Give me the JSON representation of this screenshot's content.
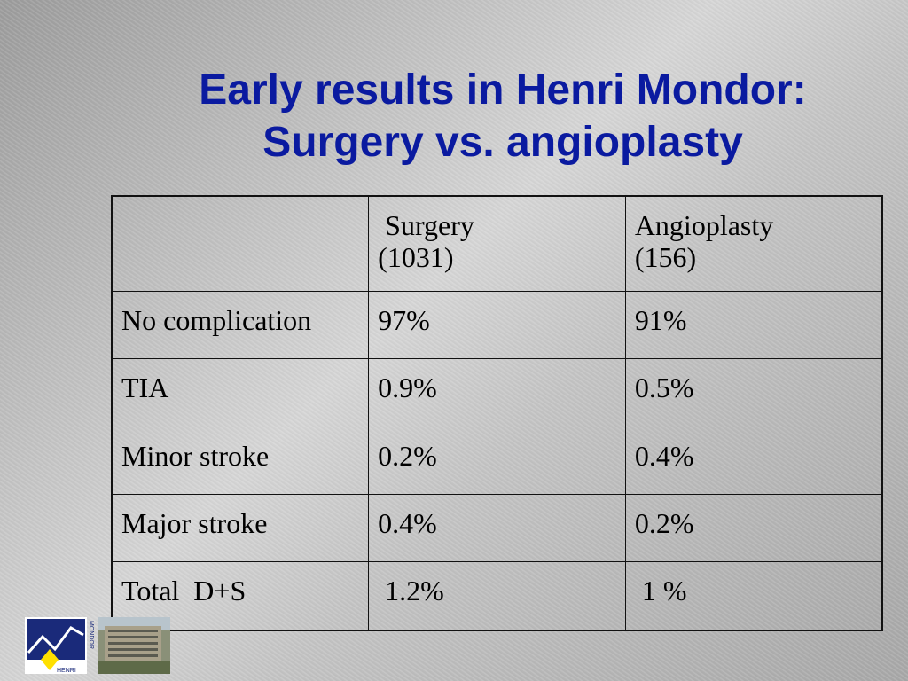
{
  "slide": {
    "title_line1": "Early results in Henri Mondor:",
    "title_line2": "Surgery vs. angioplasty"
  },
  "table": {
    "headers": [
      " ",
      " Surgery\n(1031)",
      "Angioplasty\n(156)"
    ],
    "rows": [
      [
        "No complication",
        "97%",
        "91%"
      ],
      [
        "TIA",
        "0.9%",
        "0.5%"
      ],
      [
        "Minor stroke",
        "0.2%",
        "0.4%"
      ],
      [
        "Major stroke",
        "0.4%",
        "0.2%"
      ],
      [
        "Total  D+S",
        " 1.2%",
        " 1 %"
      ]
    ]
  },
  "logo": {
    "text_vertical": "MONDOR",
    "text_horizontal": "HENRI",
    "colors": {
      "navy": "#1a2a7a",
      "yellow": "#ffe000",
      "white": "#ffffff"
    }
  }
}
